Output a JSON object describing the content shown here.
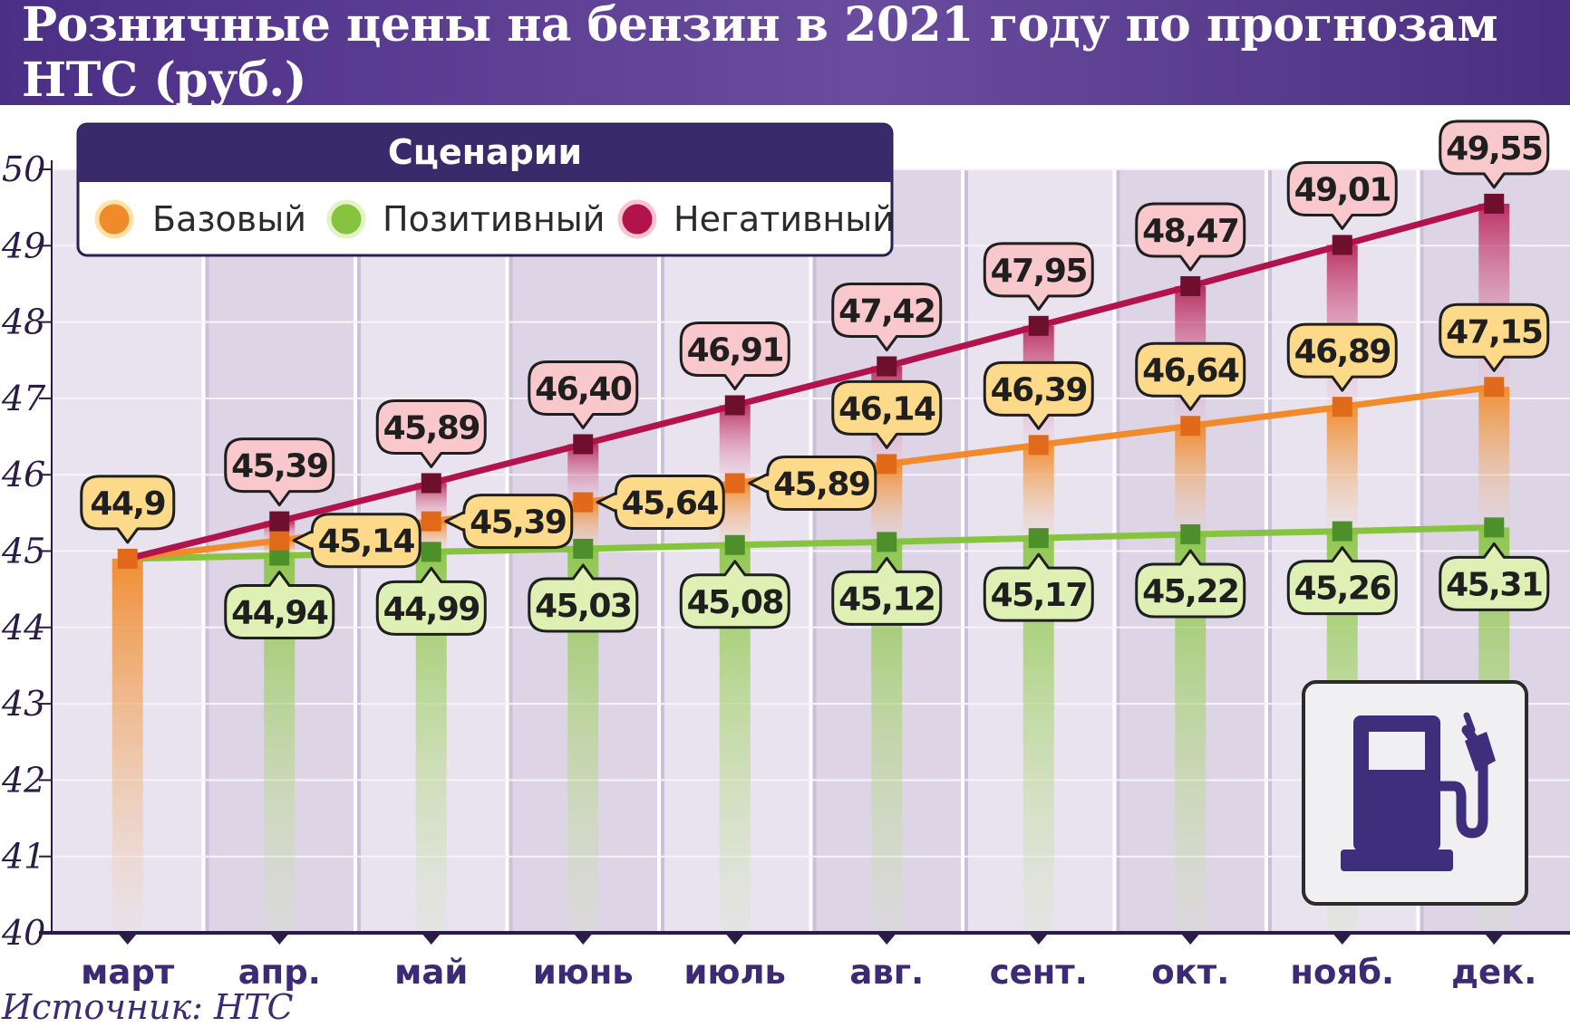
{
  "header": {
    "title": "Розничные цены на бензин в 2021 году по прогнозам НТС (руб.)"
  },
  "legend": {
    "title": "Сценарии",
    "items": [
      {
        "label": "Базовый",
        "color": "#f08a2a"
      },
      {
        "label": "Позитивный",
        "color": "#86c440"
      },
      {
        "label": "Негативный",
        "color": "#b3134b"
      }
    ]
  },
  "chart_data": {
    "type": "line",
    "categories": [
      "март",
      "апр.",
      "май",
      "июнь",
      "июль",
      "авг.",
      "сент.",
      "окт.",
      "нояб.",
      "дек."
    ],
    "ylim": [
      40,
      50
    ],
    "yticks": [
      40,
      41,
      42,
      43,
      44,
      45,
      46,
      47,
      48,
      49,
      50
    ],
    "series": [
      {
        "name": "Базовый",
        "color": "#f08a2a",
        "label_fill": "#fdd98a",
        "values": [
          44.9,
          45.14,
          45.39,
          45.64,
          45.89,
          46.14,
          46.39,
          46.64,
          46.89,
          47.15
        ],
        "labels": [
          "44,9",
          "45,14",
          "45,39",
          "45,64",
          "45,89",
          "46,14",
          "46,39",
          "46,64",
          "46,89",
          "47,15"
        ]
      },
      {
        "name": "Позитивный",
        "color": "#86c440",
        "label_fill": "#def0b4",
        "values": [
          44.9,
          44.94,
          44.99,
          45.03,
          45.08,
          45.12,
          45.17,
          45.22,
          45.26,
          45.31
        ],
        "labels": [
          "",
          "44,94",
          "44,99",
          "45,03",
          "45,08",
          "45,12",
          "45,17",
          "45,22",
          "45,26",
          "45,31"
        ]
      },
      {
        "name": "Негативный",
        "color": "#b3134b",
        "label_fill": "#f9c8cc",
        "values": [
          44.9,
          45.39,
          45.89,
          46.4,
          46.91,
          47.42,
          47.95,
          48.47,
          49.01,
          49.55
        ],
        "labels": [
          "",
          "45,39",
          "45,89",
          "46,40",
          "46,91",
          "47,42",
          "47,95",
          "48,47",
          "49,01",
          "49,55"
        ]
      }
    ]
  },
  "icon": "fuel-pump-icon",
  "source": "Источник: НТС"
}
